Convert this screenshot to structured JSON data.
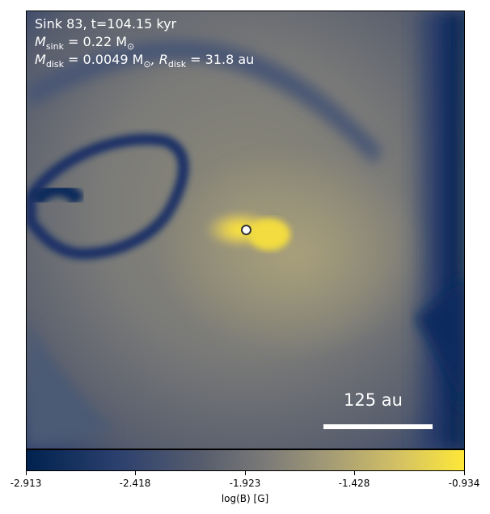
{
  "annotation": {
    "line1": "Sink 83, t=104.15 kyr",
    "msink_label": "M",
    "msink_sub": "sink",
    "msink_value": " = 0.22 M",
    "msink_unit_sub": "⊙",
    "mdisk_label": "M",
    "mdisk_sub": "disk",
    "mdisk_value": " = 0.0049 M",
    "mdisk_unit_sub": "⊙",
    "rdisk_label": ", R",
    "rdisk_sub": "disk",
    "rdisk_value": " = 31.8 au"
  },
  "scale_bar": {
    "label": "125 au"
  },
  "colorbar": {
    "label": "log(B) [G]",
    "ticks": [
      "-2.913",
      "-2.418",
      "-1.923",
      "-1.428",
      "-0.934"
    ]
  },
  "colors": {
    "cmap_low": "#00224e",
    "cmap_mid": "#7c7b78",
    "cmap_high": "#fee838"
  }
}
